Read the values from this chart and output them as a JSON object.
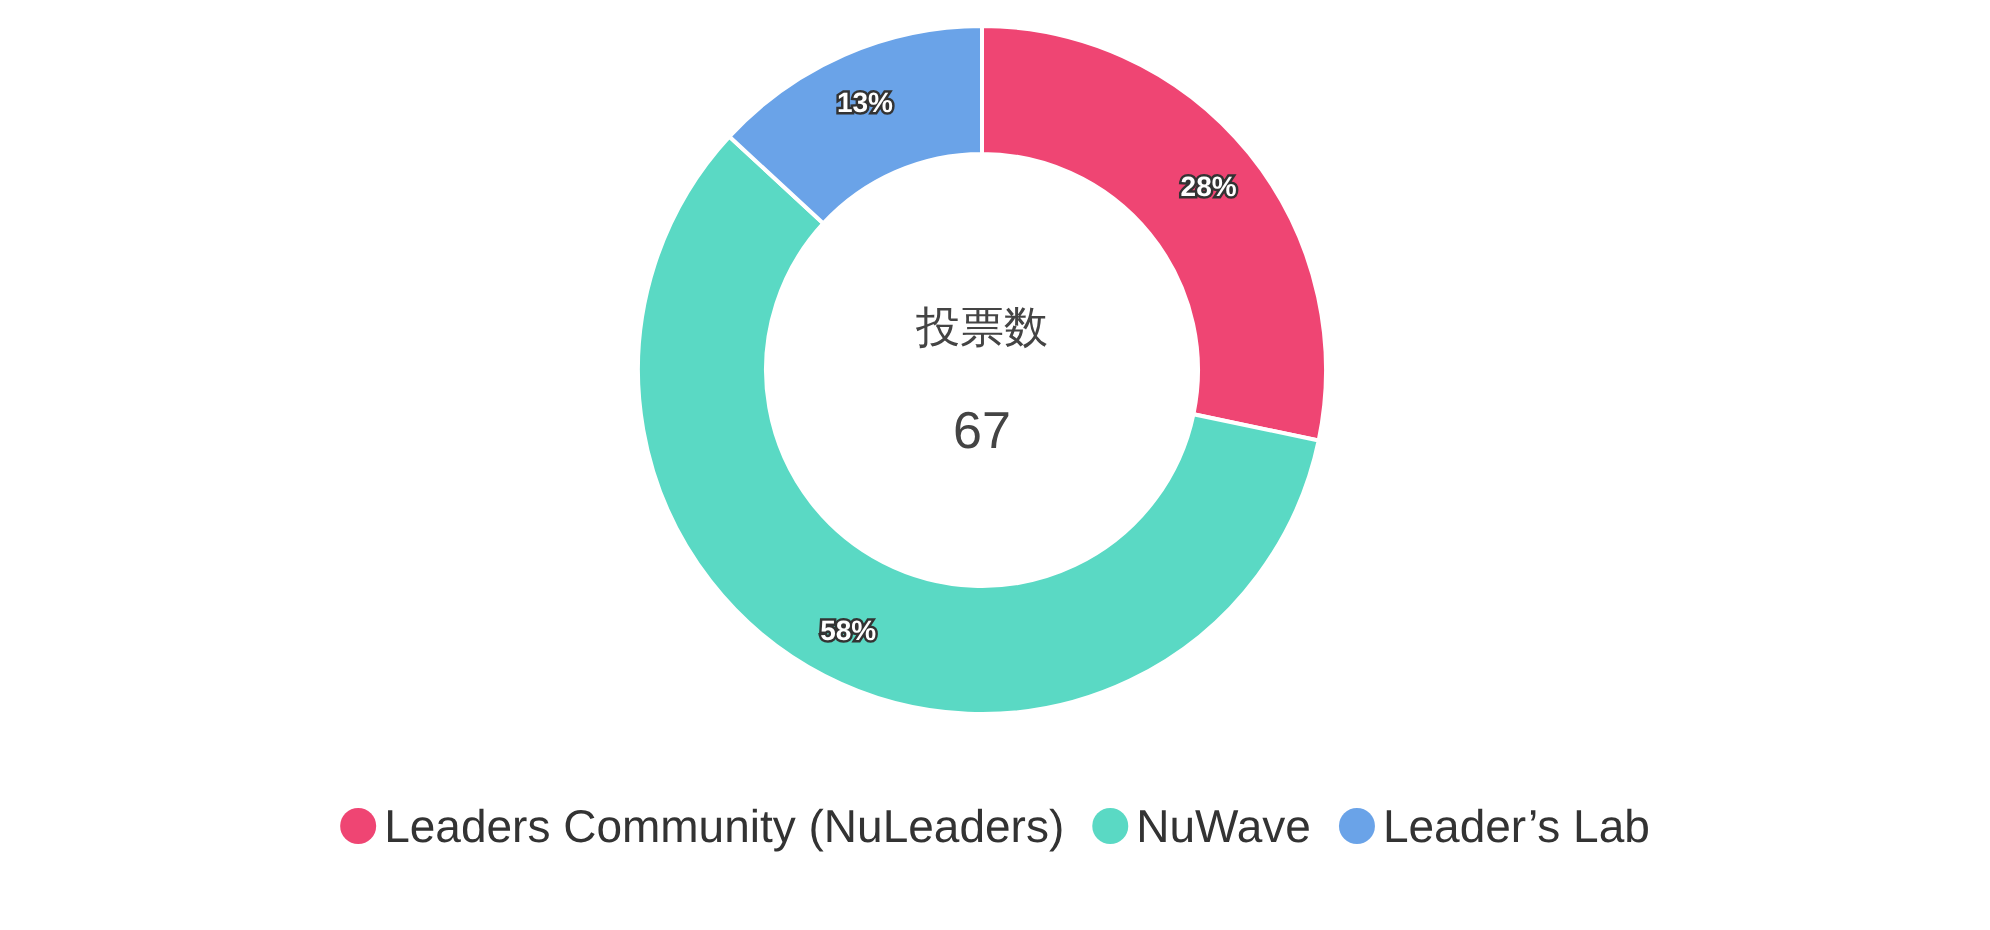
{
  "chart_data": {
    "type": "donut",
    "title": "投票数",
    "subtitle": "67",
    "categories": [
      "Leaders Community (NuLeaders)",
      "NuWave",
      "Leader’s Lab"
    ],
    "values": [
      28,
      58,
      13
    ],
    "colors": [
      "#ef4573",
      "#5ad9c4",
      "#6aa3e8"
    ],
    "value_labels": [
      "28%",
      "58%",
      "13%"
    ],
    "legend": "bottom"
  }
}
